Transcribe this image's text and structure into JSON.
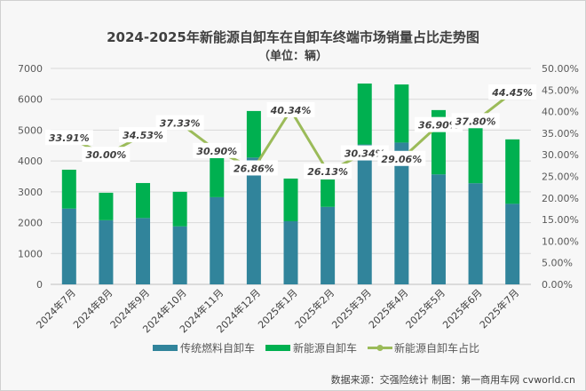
{
  "chart_data": {
    "type": "bar",
    "stacked": true,
    "title": "2024-2025年新能源自卸车在自卸车终端市场销量占比走势图",
    "subtitle": "（单位：辆）",
    "categories": [
      "2024年7月",
      "2024年8月",
      "2024年9月",
      "2024年10月",
      "2024年11月",
      "2024年12月",
      "2025年1月",
      "2025年2月",
      "2025年3月",
      "2025年4月",
      "2025年5月",
      "2025年6月",
      "2025年7月"
    ],
    "series": [
      {
        "name": "传统燃料自卸车",
        "type": "bar",
        "axis": "left",
        "color": "#31849b",
        "values": [
          2457,
          2079,
          2151,
          1880,
          2826,
          4110,
          2046,
          2512,
          4535,
          4597,
          3565,
          3278,
          2611
        ]
      },
      {
        "name": "新能源自卸车",
        "type": "bar",
        "axis": "left",
        "color": "#00b050",
        "values": [
          1260,
          891,
          1134,
          1120,
          1264,
          1510,
          1384,
          888,
          1975,
          1883,
          2085,
          1992,
          2089
        ]
      },
      {
        "name": "新能源自卸车占比",
        "type": "line",
        "axis": "right",
        "color": "#9bbb59",
        "values": [
          33.91,
          30.0,
          34.53,
          37.33,
          30.9,
          26.86,
          40.34,
          26.13,
          30.34,
          29.06,
          36.9,
          37.8,
          44.45
        ],
        "labels": [
          "33.91%",
          "30.00%",
          "34.53%",
          "37.33%",
          "30.90%",
          "26.86%",
          "40.34%",
          "26.13%",
          "30.34%",
          "29.06%",
          "36.90%",
          "37.80%",
          "44.45%"
        ]
      }
    ],
    "y_left": {
      "lim": [
        0,
        7000
      ],
      "ticks": [
        "0",
        "1000",
        "2000",
        "3000",
        "4000",
        "5000",
        "6000",
        "7000"
      ]
    },
    "y_right": {
      "lim": [
        0,
        50
      ],
      "ticks": [
        "0.00%",
        "5.00%",
        "10.00%",
        "15.00%",
        "20.00%",
        "25.00%",
        "30.00%",
        "35.00%",
        "40.00%",
        "45.00%",
        "50.00%"
      ]
    },
    "grid": true,
    "legend": "bottom"
  },
  "source": "数据来源：交强险统计 制图：第一商用车网 cvworld.cn"
}
